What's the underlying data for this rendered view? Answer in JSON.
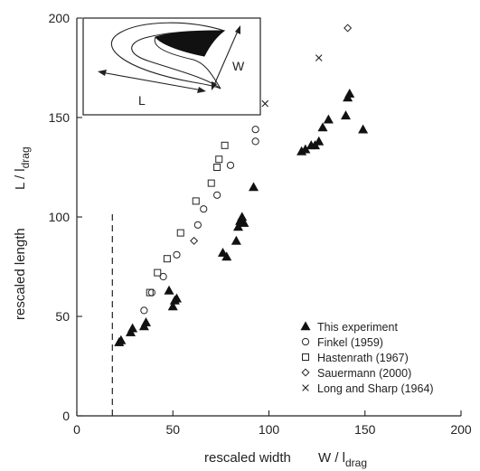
{
  "chart_data": {
    "type": "scatter",
    "x_axis": {
      "label": "rescaled width",
      "label_symbol": "W / l",
      "label_symbol_sub": "drag",
      "range": [
        0,
        200
      ],
      "ticks": [
        0,
        50,
        100,
        150,
        200
      ]
    },
    "y_axis": {
      "label": "rescaled length",
      "label_symbol": "L / l",
      "label_symbol_sub": "drag",
      "range": [
        0,
        200
      ],
      "ticks": [
        0,
        50,
        100,
        150,
        200
      ]
    },
    "dashed_vertical_line": {
      "x": 18.5,
      "y_range": [
        0,
        103
      ]
    },
    "legend_position": "bottom-right",
    "inset": {
      "position": "top-left",
      "labels": {
        "length": "L",
        "width": "W"
      }
    },
    "series": [
      {
        "name": "This experiment",
        "marker": "filled-triangle",
        "points": [
          [
            22,
            37
          ],
          [
            23,
            38
          ],
          [
            28,
            42
          ],
          [
            29,
            44
          ],
          [
            35,
            45
          ],
          [
            36,
            47
          ],
          [
            48,
            63
          ],
          [
            50,
            55
          ],
          [
            51,
            58
          ],
          [
            52,
            59
          ],
          [
            76,
            82
          ],
          [
            78,
            80
          ],
          [
            83,
            88
          ],
          [
            84,
            95
          ],
          [
            85,
            98
          ],
          [
            86,
            100
          ],
          [
            87,
            97
          ],
          [
            92,
            115
          ],
          [
            117,
            133
          ],
          [
            119,
            134
          ],
          [
            122,
            136
          ],
          [
            124,
            136
          ],
          [
            126,
            138
          ],
          [
            128,
            145
          ],
          [
            131,
            149
          ],
          [
            140,
            151
          ],
          [
            141,
            160
          ],
          [
            142,
            162
          ],
          [
            149,
            144
          ]
        ]
      },
      {
        "name": "Finkel (1959)",
        "marker": "open-circle",
        "points": [
          [
            35,
            53
          ],
          [
            39,
            62
          ],
          [
            45,
            70
          ],
          [
            52,
            81
          ],
          [
            63,
            96
          ],
          [
            66,
            104
          ],
          [
            73,
            111
          ],
          [
            80,
            126
          ],
          [
            93,
            138
          ],
          [
            93,
            144
          ]
        ]
      },
      {
        "name": "Hastenrath (1967)",
        "marker": "open-square",
        "points": [
          [
            38,
            62
          ],
          [
            42,
            72
          ],
          [
            47,
            79
          ],
          [
            54,
            92
          ],
          [
            62,
            108
          ],
          [
            70,
            117
          ],
          [
            73,
            125
          ],
          [
            74,
            129
          ],
          [
            77,
            136
          ]
        ]
      },
      {
        "name": "Sauermann (2000)",
        "marker": "open-diamond",
        "points": [
          [
            61,
            88
          ],
          [
            141,
            195
          ]
        ]
      },
      {
        "name": "Long and Sharp (1964)",
        "marker": "cross",
        "points": [
          [
            98,
            157
          ],
          [
            126,
            180
          ]
        ]
      }
    ]
  }
}
